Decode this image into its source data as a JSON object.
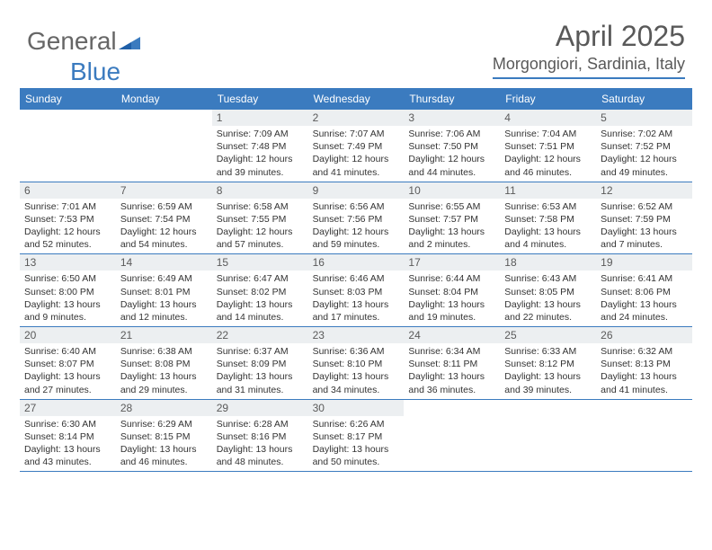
{
  "brand": {
    "part1": "General",
    "part2": "Blue"
  },
  "title": "April 2025",
  "location": "Morgongiori, Sardinia, Italy",
  "colors": {
    "accent": "#3b7bbf",
    "header_text": "#595959",
    "cell_num_bg": "#eceff1",
    "body_text": "#333333"
  },
  "day_headers": [
    "Sunday",
    "Monday",
    "Tuesday",
    "Wednesday",
    "Thursday",
    "Friday",
    "Saturday"
  ],
  "weeks": [
    [
      {
        "empty": true
      },
      {
        "empty": true
      },
      {
        "num": "1",
        "sunrise": "7:09 AM",
        "sunset": "7:48 PM",
        "daylight": "12 hours and 39 minutes."
      },
      {
        "num": "2",
        "sunrise": "7:07 AM",
        "sunset": "7:49 PM",
        "daylight": "12 hours and 41 minutes."
      },
      {
        "num": "3",
        "sunrise": "7:06 AM",
        "sunset": "7:50 PM",
        "daylight": "12 hours and 44 minutes."
      },
      {
        "num": "4",
        "sunrise": "7:04 AM",
        "sunset": "7:51 PM",
        "daylight": "12 hours and 46 minutes."
      },
      {
        "num": "5",
        "sunrise": "7:02 AM",
        "sunset": "7:52 PM",
        "daylight": "12 hours and 49 minutes."
      }
    ],
    [
      {
        "num": "6",
        "sunrise": "7:01 AM",
        "sunset": "7:53 PM",
        "daylight": "12 hours and 52 minutes."
      },
      {
        "num": "7",
        "sunrise": "6:59 AM",
        "sunset": "7:54 PM",
        "daylight": "12 hours and 54 minutes."
      },
      {
        "num": "8",
        "sunrise": "6:58 AM",
        "sunset": "7:55 PM",
        "daylight": "12 hours and 57 minutes."
      },
      {
        "num": "9",
        "sunrise": "6:56 AM",
        "sunset": "7:56 PM",
        "daylight": "12 hours and 59 minutes."
      },
      {
        "num": "10",
        "sunrise": "6:55 AM",
        "sunset": "7:57 PM",
        "daylight": "13 hours and 2 minutes."
      },
      {
        "num": "11",
        "sunrise": "6:53 AM",
        "sunset": "7:58 PM",
        "daylight": "13 hours and 4 minutes."
      },
      {
        "num": "12",
        "sunrise": "6:52 AM",
        "sunset": "7:59 PM",
        "daylight": "13 hours and 7 minutes."
      }
    ],
    [
      {
        "num": "13",
        "sunrise": "6:50 AM",
        "sunset": "8:00 PM",
        "daylight": "13 hours and 9 minutes."
      },
      {
        "num": "14",
        "sunrise": "6:49 AM",
        "sunset": "8:01 PM",
        "daylight": "13 hours and 12 minutes."
      },
      {
        "num": "15",
        "sunrise": "6:47 AM",
        "sunset": "8:02 PM",
        "daylight": "13 hours and 14 minutes."
      },
      {
        "num": "16",
        "sunrise": "6:46 AM",
        "sunset": "8:03 PM",
        "daylight": "13 hours and 17 minutes."
      },
      {
        "num": "17",
        "sunrise": "6:44 AM",
        "sunset": "8:04 PM",
        "daylight": "13 hours and 19 minutes."
      },
      {
        "num": "18",
        "sunrise": "6:43 AM",
        "sunset": "8:05 PM",
        "daylight": "13 hours and 22 minutes."
      },
      {
        "num": "19",
        "sunrise": "6:41 AM",
        "sunset": "8:06 PM",
        "daylight": "13 hours and 24 minutes."
      }
    ],
    [
      {
        "num": "20",
        "sunrise": "6:40 AM",
        "sunset": "8:07 PM",
        "daylight": "13 hours and 27 minutes."
      },
      {
        "num": "21",
        "sunrise": "6:38 AM",
        "sunset": "8:08 PM",
        "daylight": "13 hours and 29 minutes."
      },
      {
        "num": "22",
        "sunrise": "6:37 AM",
        "sunset": "8:09 PM",
        "daylight": "13 hours and 31 minutes."
      },
      {
        "num": "23",
        "sunrise": "6:36 AM",
        "sunset": "8:10 PM",
        "daylight": "13 hours and 34 minutes."
      },
      {
        "num": "24",
        "sunrise": "6:34 AM",
        "sunset": "8:11 PM",
        "daylight": "13 hours and 36 minutes."
      },
      {
        "num": "25",
        "sunrise": "6:33 AM",
        "sunset": "8:12 PM",
        "daylight": "13 hours and 39 minutes."
      },
      {
        "num": "26",
        "sunrise": "6:32 AM",
        "sunset": "8:13 PM",
        "daylight": "13 hours and 41 minutes."
      }
    ],
    [
      {
        "num": "27",
        "sunrise": "6:30 AM",
        "sunset": "8:14 PM",
        "daylight": "13 hours and 43 minutes."
      },
      {
        "num": "28",
        "sunrise": "6:29 AM",
        "sunset": "8:15 PM",
        "daylight": "13 hours and 46 minutes."
      },
      {
        "num": "29",
        "sunrise": "6:28 AM",
        "sunset": "8:16 PM",
        "daylight": "13 hours and 48 minutes."
      },
      {
        "num": "30",
        "sunrise": "6:26 AM",
        "sunset": "8:17 PM",
        "daylight": "13 hours and 50 minutes."
      },
      {
        "empty": true
      },
      {
        "empty": true
      },
      {
        "empty": true
      }
    ]
  ]
}
